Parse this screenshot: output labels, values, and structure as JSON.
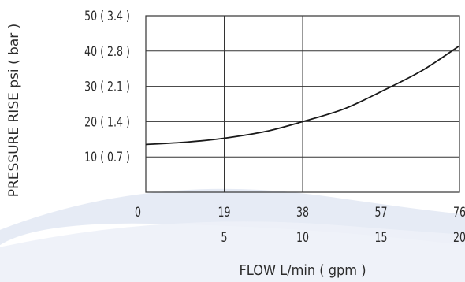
{
  "chart_data": {
    "type": "line",
    "title": "",
    "ylabel": "PRESSURE RISE psi ( bar )",
    "xlabel": "FLOW L/min ( gpm )",
    "ylim": [
      0,
      50
    ],
    "xlim": [
      0,
      76
    ],
    "grid": true,
    "y_ticks": [
      {
        "value": 10,
        "label": "10 ( 0.7 )"
      },
      {
        "value": 20,
        "label": "20 ( 1.4 )"
      },
      {
        "value": 30,
        "label": "30 ( 2.1 )"
      },
      {
        "value": 40,
        "label": "40 ( 2.8 )"
      },
      {
        "value": 50,
        "label": "50 ( 3.4 )"
      }
    ],
    "x_ticks_primary": [
      {
        "value": 0,
        "label": "0"
      },
      {
        "value": 19,
        "label": "19"
      },
      {
        "value": 38,
        "label": "38"
      },
      {
        "value": 57,
        "label": "57"
      },
      {
        "value": 76,
        "label": "76"
      }
    ],
    "x_ticks_secondary": [
      {
        "value": 19,
        "label": "5"
      },
      {
        "value": 38,
        "label": "10"
      },
      {
        "value": 57,
        "label": "15"
      },
      {
        "value": 76,
        "label": "20"
      }
    ],
    "series": [
      {
        "x": [
          0,
          10,
          19,
          29,
          38,
          48,
          57,
          67,
          76
        ],
        "y": [
          13.5,
          14.2,
          15.3,
          17.2,
          20,
          23.6,
          28.5,
          34.5,
          41.5
        ]
      }
    ],
    "colors": {
      "line": "#1a1a1a",
      "grid": "#333333",
      "background_swoosh": "#dfe6f2"
    }
  }
}
